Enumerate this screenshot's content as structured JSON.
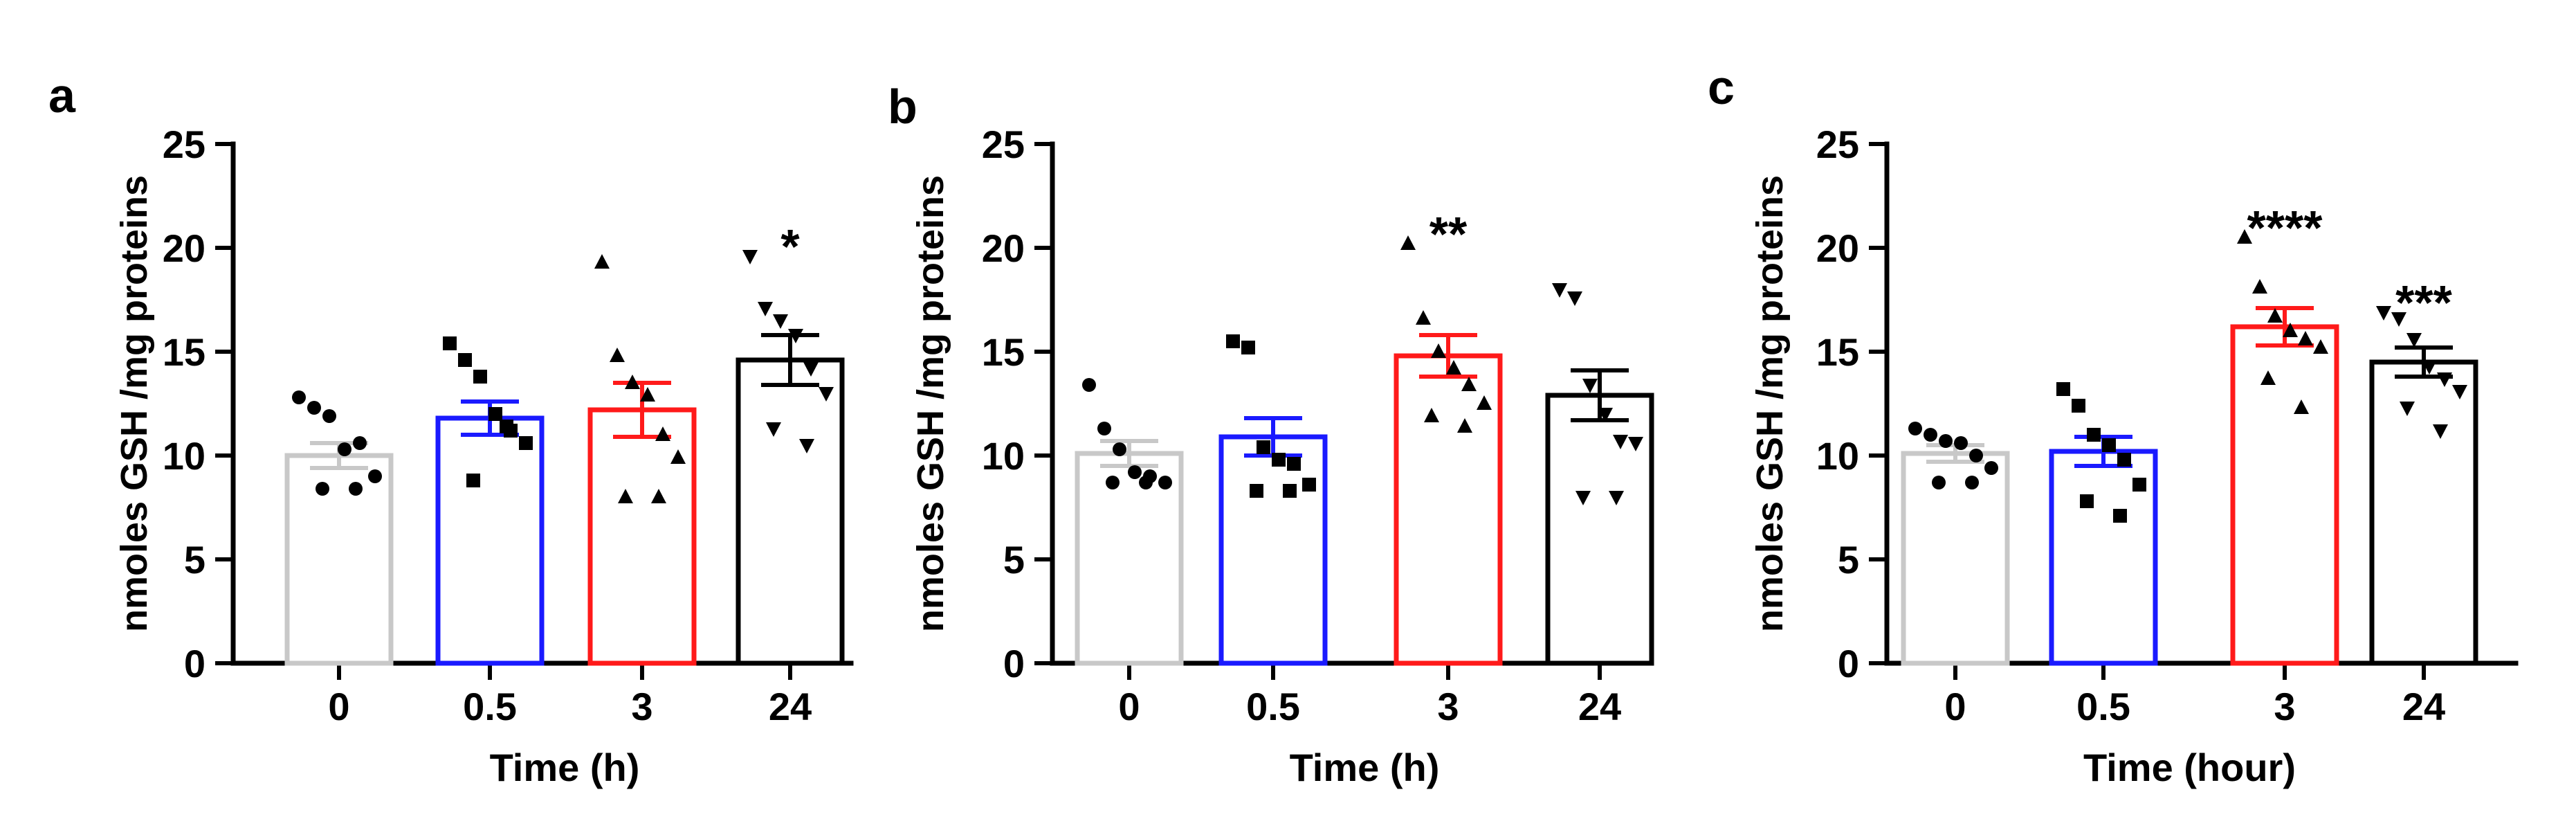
{
  "chart_data": [
    {
      "type": "bar",
      "panel": "a",
      "ylabel": "nmoles GSH /mg proteins",
      "xlabel": "Time (h)",
      "ylim": [
        0,
        25
      ],
      "yticks": [
        0,
        5,
        10,
        15,
        20,
        25
      ],
      "categories": [
        "0",
        "0.5",
        "3",
        "24"
      ],
      "bar_colors": [
        "#c8c8c8",
        "#1a1aff",
        "#ff1a1a",
        "#000000"
      ],
      "marker_shapes": [
        "circle",
        "square",
        "triangle-up",
        "triangle-down"
      ],
      "values": [
        10.0,
        11.8,
        12.2,
        14.6
      ],
      "sem": [
        0.6,
        0.8,
        1.3,
        1.2
      ],
      "significance": [
        "",
        "",
        "",
        "*"
      ],
      "points": [
        [
          12.8,
          12.3,
          11.9,
          10.3,
          10.6,
          9.0,
          8.4,
          8.4
        ],
        [
          15.4,
          14.6,
          13.8,
          12.0,
          11.2,
          10.6,
          8.8,
          11.4
        ],
        [
          19.3,
          14.8,
          13.5,
          12.9,
          11.0,
          9.9,
          8.0,
          8.0
        ],
        [
          19.6,
          17.1,
          16.5,
          15.8,
          14.2,
          13.0,
          11.3,
          10.5
        ]
      ]
    },
    {
      "type": "bar",
      "panel": "b",
      "ylabel": "nmoles GSH /mg proteins",
      "xlabel": "Time (h)",
      "ylim": [
        0,
        25
      ],
      "yticks": [
        0,
        5,
        10,
        15,
        20,
        25
      ],
      "categories": [
        "0",
        "0.5",
        "3",
        "24"
      ],
      "bar_colors": [
        "#c8c8c8",
        "#1a1aff",
        "#ff1a1a",
        "#000000"
      ],
      "marker_shapes": [
        "circle",
        "square",
        "triangle-up",
        "triangle-down"
      ],
      "values": [
        10.1,
        10.9,
        14.8,
        12.9
      ],
      "sem": [
        0.6,
        0.9,
        1.0,
        1.2
      ],
      "significance": [
        "",
        "",
        "**",
        ""
      ],
      "points": [
        [
          13.4,
          11.3,
          10.3,
          9.2,
          9.0,
          8.7,
          8.7,
          8.7
        ],
        [
          15.5,
          15.2,
          10.4,
          9.8,
          9.6,
          8.6,
          8.3,
          8.3
        ],
        [
          20.2,
          16.6,
          15.0,
          14.2,
          13.4,
          12.5,
          11.9,
          11.4
        ],
        [
          18.0,
          17.6,
          13.4,
          12.0,
          10.7,
          10.6,
          8.0,
          8.0
        ]
      ]
    },
    {
      "type": "bar",
      "panel": "c",
      "ylabel": "nmoles GSH /mg proteins",
      "xlabel": "Time (hour)",
      "ylim": [
        0,
        25
      ],
      "yticks": [
        0,
        5,
        10,
        15,
        20,
        25
      ],
      "categories": [
        "0",
        "0.5",
        "3",
        "24"
      ],
      "bar_colors": [
        "#c8c8c8",
        "#1a1aff",
        "#ff1a1a",
        "#000000"
      ],
      "marker_shapes": [
        "circle",
        "square",
        "triangle-up",
        "triangle-down"
      ],
      "values": [
        10.1,
        10.2,
        16.2,
        14.5
      ],
      "sem": [
        0.4,
        0.7,
        0.9,
        0.7
      ],
      "significance": [
        "",
        "",
        "****",
        "***"
      ],
      "points": [
        [
          11.3,
          11.0,
          10.7,
          10.6,
          10.0,
          9.4,
          8.7,
          8.7
        ],
        [
          13.2,
          12.4,
          11.0,
          10.5,
          9.8,
          8.6,
          7.8,
          7.1
        ],
        [
          20.5,
          18.1,
          16.7,
          16.0,
          15.6,
          15.2,
          13.7,
          12.3
        ],
        [
          16.9,
          16.6,
          15.6,
          14.3,
          13.7,
          13.1,
          12.3,
          11.2
        ]
      ]
    }
  ]
}
